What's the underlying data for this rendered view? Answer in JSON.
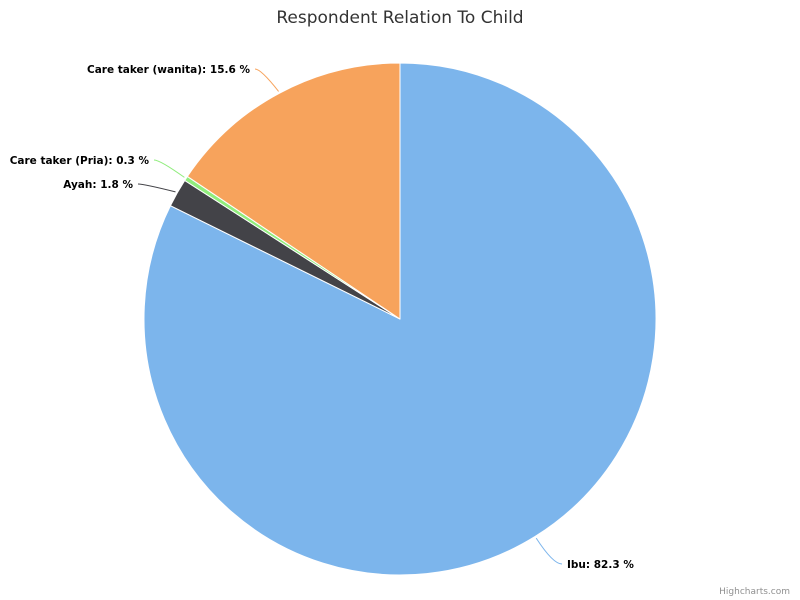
{
  "chart_data": {
    "type": "pie",
    "title": "Respondent Relation To Child",
    "slices": [
      {
        "name": "Ibu",
        "value": 82.3,
        "label": "Ibu: 82.3 %",
        "color": "#7cb5ec"
      },
      {
        "name": "Ayah",
        "value": 1.8,
        "label": "Ayah: 1.8 %",
        "color": "#434348"
      },
      {
        "name": "Care taker (Pria)",
        "value": 0.3,
        "label": "Care taker (Pria): 0.3 %",
        "color": "#90ed7d"
      },
      {
        "name": "Care taker (wanita)",
        "value": 15.6,
        "label": "Care taker (wanita): 15.6 %",
        "color": "#f7a35c"
      }
    ]
  },
  "credits": "Highcharts.com"
}
